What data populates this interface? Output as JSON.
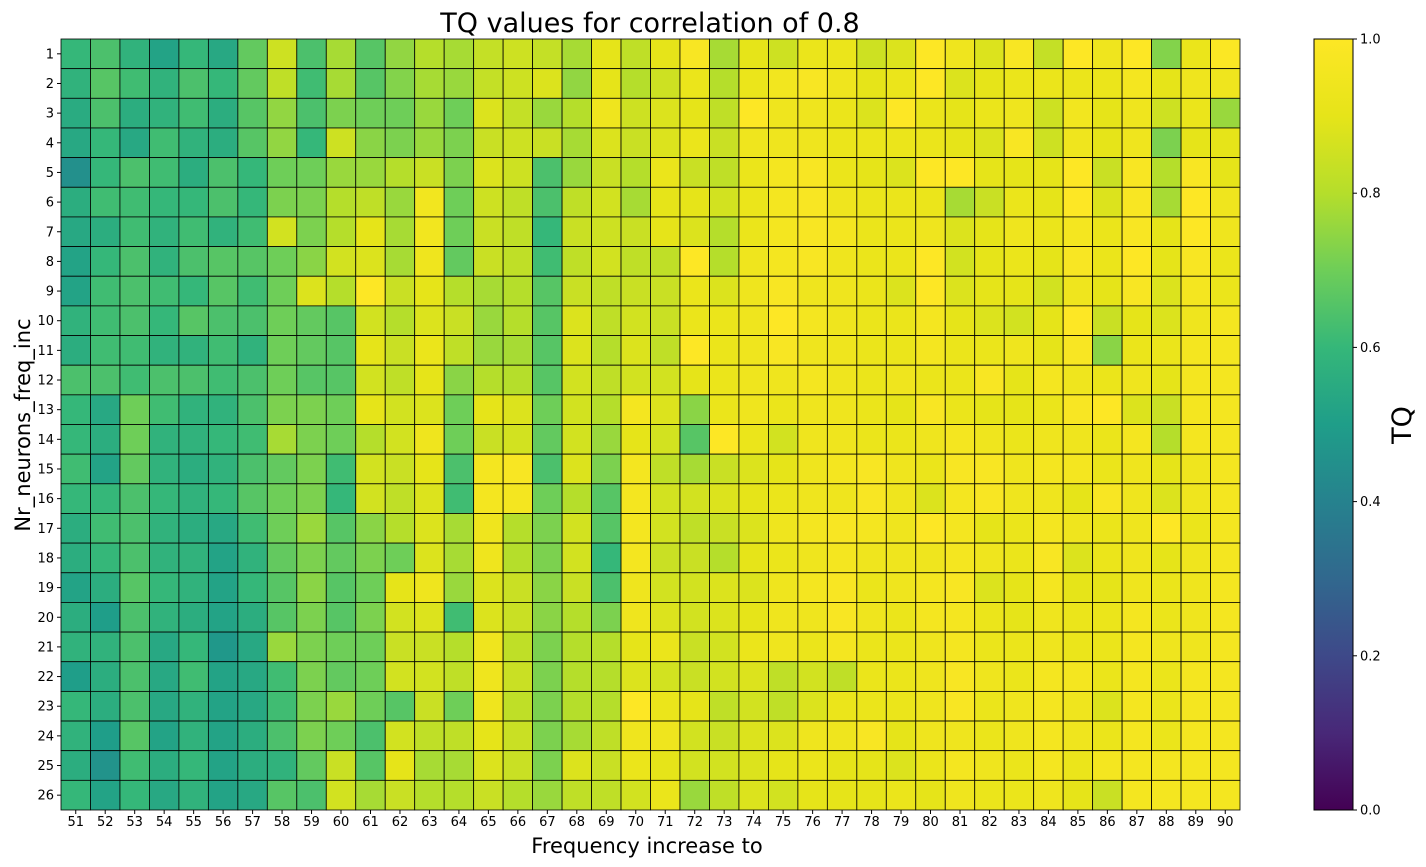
{
  "chart_data": {
    "type": "heatmap",
    "title": "TQ values for correlation of 0.8",
    "xlabel": "Frequency increase to",
    "ylabel": "Nr_neurons_freq_inc",
    "colorbar_label": "TQ",
    "colormap": "viridis",
    "clim": [
      0,
      1
    ],
    "colorbar_ticks": [
      "0.0",
      "0.2",
      "0.4",
      "0.6",
      "0.8",
      "1.0"
    ],
    "x": [
      51,
      52,
      53,
      54,
      55,
      56,
      57,
      58,
      59,
      60,
      61,
      62,
      63,
      64,
      65,
      66,
      67,
      68,
      69,
      70,
      71,
      72,
      73,
      74,
      75,
      76,
      77,
      78,
      79,
      80,
      81,
      82,
      83,
      84,
      85,
      86,
      87,
      88,
      89,
      90
    ],
    "y": [
      1,
      2,
      3,
      4,
      5,
      6,
      7,
      8,
      9,
      10,
      11,
      12,
      13,
      14,
      15,
      16,
      17,
      18,
      19,
      20,
      21,
      22,
      23,
      24,
      25,
      26
    ],
    "z": [
      [
        0.6,
        0.64,
        0.58,
        0.52,
        0.6,
        0.54,
        0.68,
        0.85,
        0.64,
        0.78,
        0.66,
        0.75,
        0.8,
        0.78,
        0.83,
        0.85,
        0.83,
        0.78,
        0.9,
        0.82,
        0.9,
        0.98,
        0.78,
        0.9,
        0.85,
        0.92,
        0.92,
        0.85,
        0.88,
        1.0,
        0.94,
        0.88,
        0.98,
        0.83,
        1.0,
        0.94,
        1.0,
        0.73,
        0.92,
        0.99
      ],
      [
        0.58,
        0.66,
        0.62,
        0.58,
        0.64,
        0.6,
        0.68,
        0.82,
        0.62,
        0.78,
        0.66,
        0.73,
        0.78,
        0.76,
        0.83,
        0.85,
        0.88,
        0.75,
        0.9,
        0.8,
        0.85,
        0.92,
        0.8,
        0.92,
        0.95,
        0.98,
        0.94,
        0.9,
        0.92,
        1.0,
        0.88,
        0.9,
        0.92,
        0.92,
        0.92,
        0.92,
        0.96,
        0.9,
        0.94,
        0.94
      ],
      [
        0.55,
        0.64,
        0.56,
        0.58,
        0.62,
        0.56,
        0.66,
        0.75,
        0.64,
        0.72,
        0.7,
        0.7,
        0.76,
        0.7,
        0.88,
        0.83,
        0.76,
        0.8,
        0.94,
        0.85,
        0.88,
        0.9,
        0.82,
        1.0,
        0.94,
        0.94,
        0.92,
        0.88,
        1.0,
        0.92,
        0.9,
        0.92,
        0.94,
        0.85,
        0.95,
        0.9,
        0.94,
        0.85,
        0.92,
        0.76
      ],
      [
        0.54,
        0.6,
        0.54,
        0.62,
        0.58,
        0.56,
        0.66,
        0.75,
        0.6,
        0.85,
        0.74,
        0.72,
        0.76,
        0.72,
        0.84,
        0.85,
        0.84,
        0.78,
        0.88,
        0.84,
        0.88,
        0.92,
        0.84,
        0.94,
        0.94,
        0.94,
        0.92,
        0.92,
        0.92,
        0.92,
        0.9,
        0.88,
        0.98,
        0.85,
        0.94,
        0.9,
        0.94,
        0.72,
        0.9,
        0.9
      ],
      [
        0.45,
        0.6,
        0.64,
        0.62,
        0.56,
        0.64,
        0.6,
        0.7,
        0.7,
        0.76,
        0.76,
        0.8,
        0.84,
        0.72,
        0.88,
        0.85,
        0.64,
        0.76,
        0.84,
        0.8,
        0.92,
        0.84,
        0.82,
        0.92,
        0.96,
        0.98,
        0.92,
        0.9,
        0.88,
        1.0,
        1.0,
        0.9,
        0.9,
        0.9,
        1.0,
        0.84,
        0.98,
        0.8,
        0.98,
        0.9
      ],
      [
        0.56,
        0.62,
        0.62,
        0.6,
        0.6,
        0.64,
        0.6,
        0.72,
        0.72,
        0.8,
        0.82,
        0.76,
        0.95,
        0.7,
        0.85,
        0.82,
        0.64,
        0.82,
        0.86,
        0.78,
        0.9,
        0.9,
        0.86,
        0.92,
        0.96,
        0.98,
        0.94,
        0.92,
        0.92,
        0.92,
        0.78,
        0.84,
        0.92,
        0.9,
        1.0,
        0.88,
        0.98,
        0.78,
        1.0,
        0.94
      ],
      [
        0.54,
        0.56,
        0.62,
        0.58,
        0.62,
        0.58,
        0.62,
        0.86,
        0.72,
        0.8,
        0.9,
        0.78,
        0.95,
        0.7,
        0.84,
        0.82,
        0.6,
        0.84,
        0.85,
        0.84,
        0.9,
        0.88,
        0.8,
        0.92,
        0.96,
        0.98,
        0.96,
        0.92,
        0.92,
        0.94,
        0.88,
        0.9,
        0.94,
        0.92,
        0.96,
        0.92,
        0.98,
        0.9,
        1.0,
        0.94
      ],
      [
        0.52,
        0.6,
        0.64,
        0.58,
        0.64,
        0.66,
        0.66,
        0.7,
        0.74,
        0.86,
        0.88,
        0.78,
        0.94,
        0.68,
        0.84,
        0.82,
        0.62,
        0.82,
        0.86,
        0.82,
        0.82,
        1.0,
        0.8,
        0.94,
        0.96,
        0.98,
        0.94,
        0.92,
        0.92,
        1.0,
        0.86,
        0.9,
        0.92,
        0.9,
        0.98,
        0.92,
        1.0,
        0.9,
        0.98,
        0.92
      ],
      [
        0.52,
        0.62,
        0.64,
        0.62,
        0.6,
        0.66,
        0.62,
        0.7,
        0.88,
        0.8,
        1.0,
        0.84,
        0.9,
        0.8,
        0.78,
        0.8,
        0.66,
        0.84,
        0.82,
        0.84,
        0.84,
        0.92,
        0.88,
        0.94,
        0.98,
        0.94,
        0.94,
        0.92,
        0.88,
        1.0,
        0.88,
        0.9,
        0.9,
        0.86,
        0.94,
        0.9,
        0.98,
        0.88,
        0.96,
        0.92
      ],
      [
        0.58,
        0.62,
        0.64,
        0.6,
        0.66,
        0.64,
        0.64,
        0.7,
        0.68,
        0.66,
        0.86,
        0.8,
        0.88,
        0.84,
        0.76,
        0.8,
        0.66,
        0.88,
        0.82,
        0.86,
        0.84,
        0.92,
        0.92,
        0.94,
        1.0,
        0.96,
        0.94,
        0.92,
        0.92,
        0.96,
        0.9,
        0.88,
        0.86,
        0.9,
        1.0,
        0.84,
        0.9,
        0.88,
        0.94,
        0.96
      ],
      [
        0.56,
        0.62,
        0.62,
        0.58,
        0.58,
        0.62,
        0.58,
        0.7,
        0.68,
        0.66,
        0.9,
        0.84,
        0.92,
        0.82,
        0.76,
        0.78,
        0.66,
        0.88,
        0.8,
        0.88,
        0.82,
        1.0,
        0.92,
        0.94,
        0.98,
        0.94,
        0.94,
        0.92,
        0.92,
        0.96,
        0.92,
        0.92,
        0.94,
        0.9,
        0.98,
        0.74,
        0.92,
        0.92,
        0.96,
        0.96
      ],
      [
        0.64,
        0.64,
        0.62,
        0.64,
        0.64,
        0.62,
        0.64,
        0.7,
        0.66,
        0.66,
        0.86,
        0.82,
        0.9,
        0.74,
        0.8,
        0.8,
        0.66,
        0.86,
        0.82,
        0.86,
        0.86,
        0.9,
        0.92,
        0.94,
        0.94,
        0.96,
        0.94,
        0.92,
        0.94,
        0.92,
        0.92,
        0.98,
        0.9,
        0.96,
        0.94,
        0.92,
        0.94,
        0.9,
        0.96,
        0.96
      ],
      [
        0.6,
        0.54,
        0.7,
        0.62,
        0.58,
        0.58,
        0.64,
        0.72,
        0.72,
        0.7,
        0.9,
        0.86,
        0.88,
        0.7,
        0.9,
        0.88,
        0.7,
        0.86,
        0.8,
        0.96,
        0.88,
        0.74,
        0.92,
        0.94,
        0.92,
        0.94,
        0.94,
        0.92,
        0.9,
        0.98,
        0.92,
        0.9,
        0.9,
        0.92,
        0.98,
        1.0,
        0.88,
        0.84,
        0.96,
        0.96
      ],
      [
        0.6,
        0.56,
        0.7,
        0.58,
        0.58,
        0.6,
        0.62,
        0.78,
        0.72,
        0.7,
        0.8,
        0.86,
        0.94,
        0.7,
        0.84,
        0.86,
        0.68,
        0.86,
        0.76,
        0.9,
        0.86,
        0.66,
        1.0,
        0.92,
        0.86,
        0.94,
        0.94,
        0.92,
        0.92,
        0.94,
        0.96,
        0.94,
        0.92,
        0.94,
        0.94,
        0.92,
        0.96,
        0.8,
        0.96,
        0.96
      ],
      [
        0.62,
        0.52,
        0.68,
        0.58,
        0.56,
        0.58,
        0.64,
        0.68,
        0.72,
        0.62,
        0.86,
        0.84,
        0.9,
        0.64,
        0.96,
        0.98,
        0.64,
        0.88,
        0.72,
        0.96,
        0.82,
        0.78,
        0.84,
        0.88,
        0.9,
        0.94,
        0.96,
        0.98,
        0.94,
        0.92,
        0.98,
        0.98,
        0.94,
        0.96,
        0.96,
        0.92,
        0.94,
        0.9,
        0.94,
        0.96
      ],
      [
        0.6,
        0.6,
        0.64,
        0.6,
        0.58,
        0.6,
        0.66,
        0.7,
        0.72,
        0.6,
        0.86,
        0.82,
        0.88,
        0.62,
        0.96,
        0.96,
        0.7,
        0.8,
        0.66,
        0.96,
        0.86,
        0.86,
        0.88,
        0.9,
        0.92,
        0.94,
        0.94,
        0.98,
        0.94,
        0.88,
        0.96,
        0.98,
        0.94,
        0.94,
        0.9,
        0.98,
        0.94,
        0.88,
        0.94,
        0.96
      ],
      [
        0.56,
        0.62,
        0.64,
        0.58,
        0.56,
        0.54,
        0.62,
        0.7,
        0.76,
        0.66,
        0.74,
        0.8,
        0.88,
        0.78,
        0.94,
        0.8,
        0.72,
        0.86,
        0.66,
        0.96,
        0.86,
        0.82,
        0.84,
        0.88,
        0.94,
        0.96,
        0.98,
        0.96,
        0.94,
        1.0,
        0.96,
        0.9,
        0.92,
        0.96,
        0.94,
        0.92,
        0.94,
        1.0,
        0.92,
        0.96
      ],
      [
        0.56,
        0.6,
        0.64,
        0.58,
        0.58,
        0.52,
        0.58,
        0.68,
        0.72,
        0.68,
        0.72,
        0.7,
        0.88,
        0.78,
        0.94,
        0.8,
        0.72,
        0.86,
        0.6,
        0.96,
        0.84,
        0.84,
        0.8,
        0.9,
        0.92,
        0.94,
        0.96,
        0.94,
        0.94,
        0.94,
        0.96,
        0.94,
        0.92,
        0.98,
        0.88,
        0.92,
        0.94,
        0.9,
        0.94,
        0.96
      ],
      [
        0.52,
        0.56,
        0.66,
        0.6,
        0.58,
        0.52,
        0.6,
        0.66,
        0.74,
        0.66,
        0.7,
        0.9,
        0.94,
        0.76,
        0.88,
        0.84,
        0.74,
        0.84,
        0.64,
        0.94,
        0.86,
        0.86,
        0.88,
        0.88,
        0.94,
        0.96,
        0.98,
        0.92,
        0.94,
        0.96,
        0.98,
        0.88,
        0.9,
        0.96,
        0.9,
        0.9,
        0.94,
        0.92,
        0.94,
        0.96
      ],
      [
        0.56,
        0.5,
        0.64,
        0.58,
        0.56,
        0.52,
        0.56,
        0.66,
        0.72,
        0.66,
        0.72,
        0.86,
        0.88,
        0.62,
        0.88,
        0.84,
        0.74,
        0.8,
        0.72,
        0.94,
        0.88,
        0.86,
        0.88,
        0.9,
        0.94,
        0.94,
        0.98,
        0.94,
        0.92,
        0.96,
        0.96,
        0.92,
        0.9,
        0.94,
        0.92,
        0.92,
        0.96,
        0.92,
        0.94,
        0.96
      ],
      [
        0.58,
        0.58,
        0.64,
        0.54,
        0.6,
        0.48,
        0.54,
        0.76,
        0.72,
        0.7,
        0.7,
        0.84,
        0.84,
        0.8,
        0.94,
        0.82,
        0.72,
        0.8,
        0.8,
        0.9,
        0.92,
        0.84,
        0.86,
        0.92,
        0.94,
        0.92,
        0.96,
        0.92,
        0.92,
        0.94,
        0.96,
        0.92,
        0.92,
        0.94,
        0.92,
        0.92,
        0.96,
        0.94,
        0.94,
        0.96
      ],
      [
        0.5,
        0.56,
        0.64,
        0.54,
        0.62,
        0.52,
        0.54,
        0.62,
        0.72,
        0.68,
        0.7,
        0.86,
        0.86,
        0.82,
        0.94,
        0.84,
        0.72,
        0.8,
        0.8,
        0.88,
        0.86,
        0.84,
        0.86,
        0.88,
        0.82,
        0.86,
        0.82,
        0.92,
        0.92,
        0.94,
        0.98,
        0.94,
        0.92,
        0.96,
        0.96,
        0.92,
        0.96,
        0.92,
        0.96,
        0.96
      ],
      [
        0.6,
        0.56,
        0.64,
        0.54,
        0.58,
        0.52,
        0.54,
        0.62,
        0.72,
        0.76,
        0.7,
        0.66,
        0.84,
        0.7,
        0.94,
        0.82,
        0.72,
        0.8,
        0.8,
        1.0,
        0.92,
        0.9,
        0.82,
        0.86,
        0.82,
        0.88,
        0.92,
        0.92,
        0.92,
        0.94,
        0.98,
        0.92,
        0.94,
        0.96,
        0.94,
        0.88,
        0.96,
        0.92,
        0.96,
        0.96
      ],
      [
        0.58,
        0.5,
        0.66,
        0.52,
        0.58,
        0.52,
        0.56,
        0.64,
        0.72,
        0.7,
        0.64,
        0.86,
        0.82,
        0.82,
        0.9,
        0.84,
        0.72,
        0.78,
        0.82,
        0.94,
        0.94,
        0.86,
        0.84,
        0.88,
        0.88,
        0.94,
        0.94,
        0.98,
        0.9,
        0.94,
        0.94,
        0.92,
        0.94,
        0.96,
        0.94,
        0.92,
        0.96,
        0.92,
        0.96,
        0.96
      ],
      [
        0.56,
        0.46,
        0.62,
        0.56,
        0.6,
        0.52,
        0.56,
        0.58,
        0.68,
        0.84,
        0.66,
        0.9,
        0.78,
        0.78,
        0.88,
        0.84,
        0.72,
        0.88,
        0.84,
        0.92,
        0.9,
        0.86,
        0.86,
        0.88,
        0.9,
        0.92,
        0.9,
        0.9,
        0.88,
        0.92,
        0.96,
        0.94,
        0.92,
        0.96,
        0.92,
        0.96,
        0.96,
        0.96,
        0.96,
        0.96
      ],
      [
        0.6,
        0.52,
        0.6,
        0.54,
        0.58,
        0.52,
        0.54,
        0.66,
        0.64,
        0.86,
        0.78,
        0.84,
        0.8,
        0.8,
        0.84,
        0.8,
        0.76,
        0.82,
        0.82,
        0.86,
        0.92,
        0.76,
        0.82,
        0.88,
        0.86,
        0.9,
        0.9,
        0.9,
        0.92,
        0.9,
        0.94,
        0.92,
        0.92,
        0.94,
        0.9,
        0.84,
        0.96,
        0.96,
        0.96,
        0.96
      ]
    ]
  }
}
